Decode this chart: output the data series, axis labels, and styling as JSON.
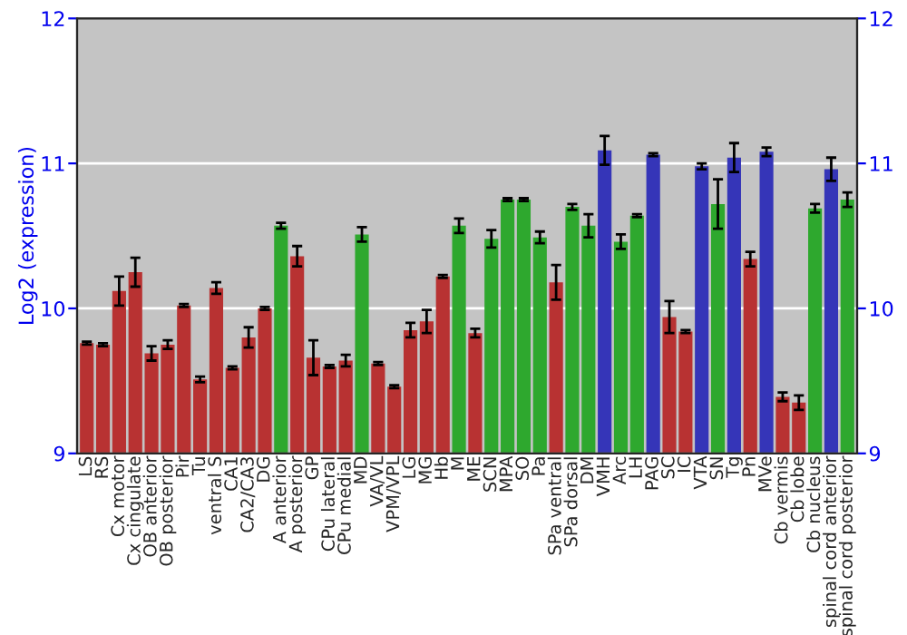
{
  "chart_data": {
    "type": "bar",
    "ylabel": "Log2 (expression)",
    "categories": [
      "LS",
      "RS",
      "Cx motor",
      "Cx cingulate",
      "OB anterior",
      "OB posterior",
      "Pir",
      "Tu",
      "ventral S",
      "CA1",
      "CA2/CA3",
      "DG",
      "A anterior",
      "A posterior",
      "GP",
      "CPu lateral",
      "CPu medial",
      "MD",
      "VA/VL",
      "VPM/VPL",
      "LG",
      "MG",
      "Hb",
      "M",
      "ME",
      "SCN",
      "MPA",
      "SO",
      "Pa",
      "SPa ventral",
      "SPa dorsal",
      "DM",
      "VMH",
      "Arc",
      "LH",
      "PAG",
      "SC",
      "IC",
      "VTA",
      "SN",
      "Tg",
      "Pn",
      "MVe",
      "Cb vermis",
      "Cb lobe",
      "Cb nucleus",
      "spinal cord anterior",
      "spinal cord posterior"
    ],
    "values": [
      9.76,
      9.75,
      10.12,
      10.25,
      9.69,
      9.75,
      10.02,
      9.51,
      10.14,
      9.59,
      9.8,
      10.0,
      10.57,
      10.36,
      9.66,
      9.6,
      9.64,
      10.51,
      9.62,
      9.46,
      9.85,
      9.91,
      10.22,
      10.57,
      9.83,
      10.48,
      10.75,
      10.75,
      10.49,
      10.18,
      10.7,
      10.57,
      11.09,
      10.46,
      10.64,
      11.06,
      9.94,
      9.84,
      10.98,
      10.72,
      11.04,
      10.34,
      11.08,
      9.39,
      9.35,
      10.69,
      10.96,
      10.75
    ],
    "errors": [
      0.01,
      0.01,
      0.1,
      0.1,
      0.05,
      0.03,
      0.01,
      0.02,
      0.04,
      0.01,
      0.07,
      0.01,
      0.02,
      0.07,
      0.12,
      0.01,
      0.04,
      0.05,
      0.01,
      0.01,
      0.05,
      0.08,
      0.01,
      0.05,
      0.03,
      0.06,
      0.01,
      0.01,
      0.04,
      0.12,
      0.02,
      0.08,
      0.1,
      0.05,
      0.01,
      0.01,
      0.11,
      0.01,
      0.02,
      0.17,
      0.1,
      0.05,
      0.03,
      0.03,
      0.05,
      0.03,
      0.08,
      0.05
    ],
    "colors": [
      "#b83232",
      "#b83232",
      "#b83232",
      "#b83232",
      "#b83232",
      "#b83232",
      "#b83232",
      "#b83232",
      "#b83232",
      "#b83232",
      "#b83232",
      "#b83232",
      "#2ea82e",
      "#b83232",
      "#b83232",
      "#b83232",
      "#b83232",
      "#2ea82e",
      "#b83232",
      "#b83232",
      "#b83232",
      "#b83232",
      "#b83232",
      "#2ea82e",
      "#b83232",
      "#2ea82e",
      "#2ea82e",
      "#2ea82e",
      "#2ea82e",
      "#b83232",
      "#2ea82e",
      "#2ea82e",
      "#3535b8",
      "#2ea82e",
      "#2ea82e",
      "#3535b8",
      "#b83232",
      "#b83232",
      "#3535b8",
      "#2ea82e",
      "#3535b8",
      "#b83232",
      "#3535b8",
      "#b83232",
      "#b83232",
      "#2ea82e",
      "#3535b8",
      "#2ea82e"
    ],
    "ylim": [
      9,
      12
    ],
    "yticks": [
      9,
      10,
      11,
      12
    ],
    "y2lim": [
      9,
      12
    ],
    "y2ticks": [
      9,
      10,
      11,
      12
    ],
    "grid": "y",
    "legend": false
  }
}
